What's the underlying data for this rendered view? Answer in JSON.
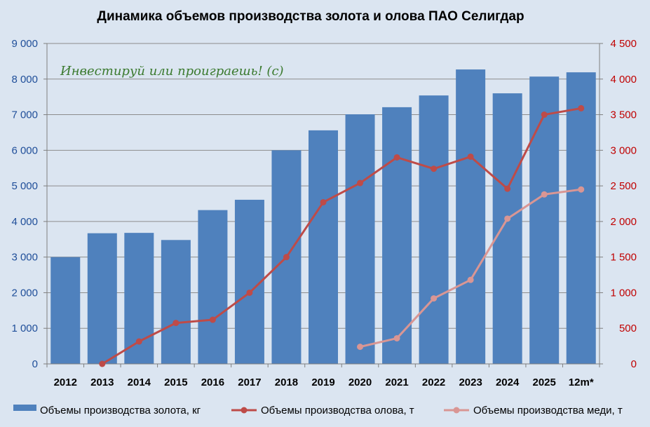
{
  "chart_data": {
    "type": "bar",
    "title": "Динамика объемов производства золота и олова ПАО Селигдар",
    "watermark": "Инвестируй или проиграешь! (с)",
    "categories": [
      "2012",
      "2013",
      "2014",
      "2015",
      "2016",
      "2017",
      "2018",
      "2019",
      "2020",
      "2021",
      "2022",
      "2023",
      "2024",
      "2025",
      "12m*"
    ],
    "left_axis": {
      "ylim": [
        0,
        9000
      ],
      "ticks": [
        0,
        1000,
        2000,
        3000,
        4000,
        5000,
        6000,
        7000,
        8000,
        9000
      ],
      "tick_labels": [
        "0",
        "1 000",
        "2 000",
        "3 000",
        "4 000",
        "5 000",
        "6 000",
        "7 000",
        "8 000",
        "9 000"
      ],
      "color": "#1f4e99"
    },
    "right_axis": {
      "ylim": [
        0,
        4500
      ],
      "ticks": [
        0,
        500,
        1000,
        1500,
        2000,
        2500,
        3000,
        3500,
        4000,
        4500
      ],
      "tick_labels": [
        "0",
        "500",
        "1 000",
        "1 500",
        "2 000",
        "2 500",
        "3 000",
        "3 500",
        "4 000",
        "4 500"
      ],
      "color": "#c00000"
    },
    "grid": true,
    "legend_position": "bottom",
    "series": [
      {
        "name": "Объемы производства золота, кг",
        "kind": "bar",
        "axis": "left",
        "color": "#4f81bd",
        "values": [
          3000,
          3670,
          3680,
          3480,
          4320,
          4610,
          6000,
          6560,
          7010,
          7210,
          7540,
          8270,
          7600,
          8070,
          8190
        ]
      },
      {
        "name": "Объемы производства олова, т",
        "kind": "line",
        "axis": "right",
        "color": "#be4b48",
        "values": [
          null,
          0,
          315,
          575,
          620,
          1000,
          1500,
          2270,
          2540,
          2900,
          2740,
          2910,
          2460,
          3500,
          3590
        ]
      },
      {
        "name": "Объемы производства меди, т",
        "kind": "line",
        "axis": "right",
        "color": "#d99694",
        "values": [
          null,
          null,
          null,
          null,
          null,
          null,
          null,
          null,
          240,
          360,
          920,
          1180,
          2040,
          2380,
          2450
        ]
      }
    ]
  }
}
